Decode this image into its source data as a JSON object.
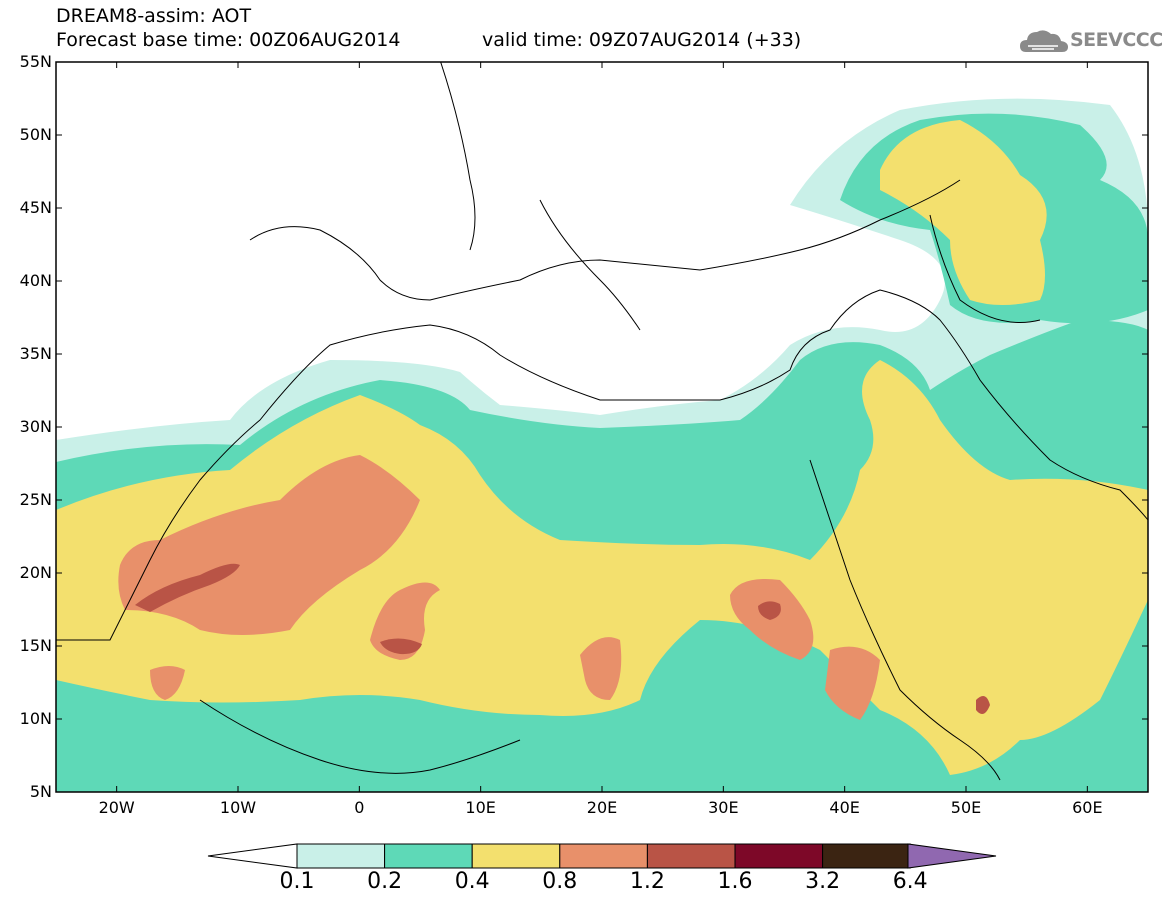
{
  "header": {
    "title": "DREAM8-assim: AOT",
    "base_time": "Forecast base time: 00Z06AUG2014",
    "valid_time": "valid time: 09Z07AUG2014 (+33)",
    "logo_text": "SEEVCCC"
  },
  "map": {
    "lon_range": [
      -25,
      65
    ],
    "lat_range": [
      5,
      55
    ],
    "lat_labels": [
      "5N",
      "10N",
      "15N",
      "20N",
      "25N",
      "30N",
      "35N",
      "40N",
      "45N",
      "50N",
      "55N"
    ],
    "lon_labels": [
      "20W",
      "10W",
      "0",
      "10E",
      "20E",
      "30E",
      "40E",
      "50E",
      "60E"
    ]
  },
  "colorbar": {
    "labels": [
      "0.1",
      "0.2",
      "0.4",
      "0.8",
      "1.2",
      "1.6",
      "3.2",
      "6.4"
    ],
    "colors": [
      "#c9f0e8",
      "#5ed9b7",
      "#f3e06e",
      "#e8906a",
      "#b95446",
      "#7d0828",
      "#3b2412",
      "#9068b0"
    ],
    "under_color": "#ffffff"
  }
}
